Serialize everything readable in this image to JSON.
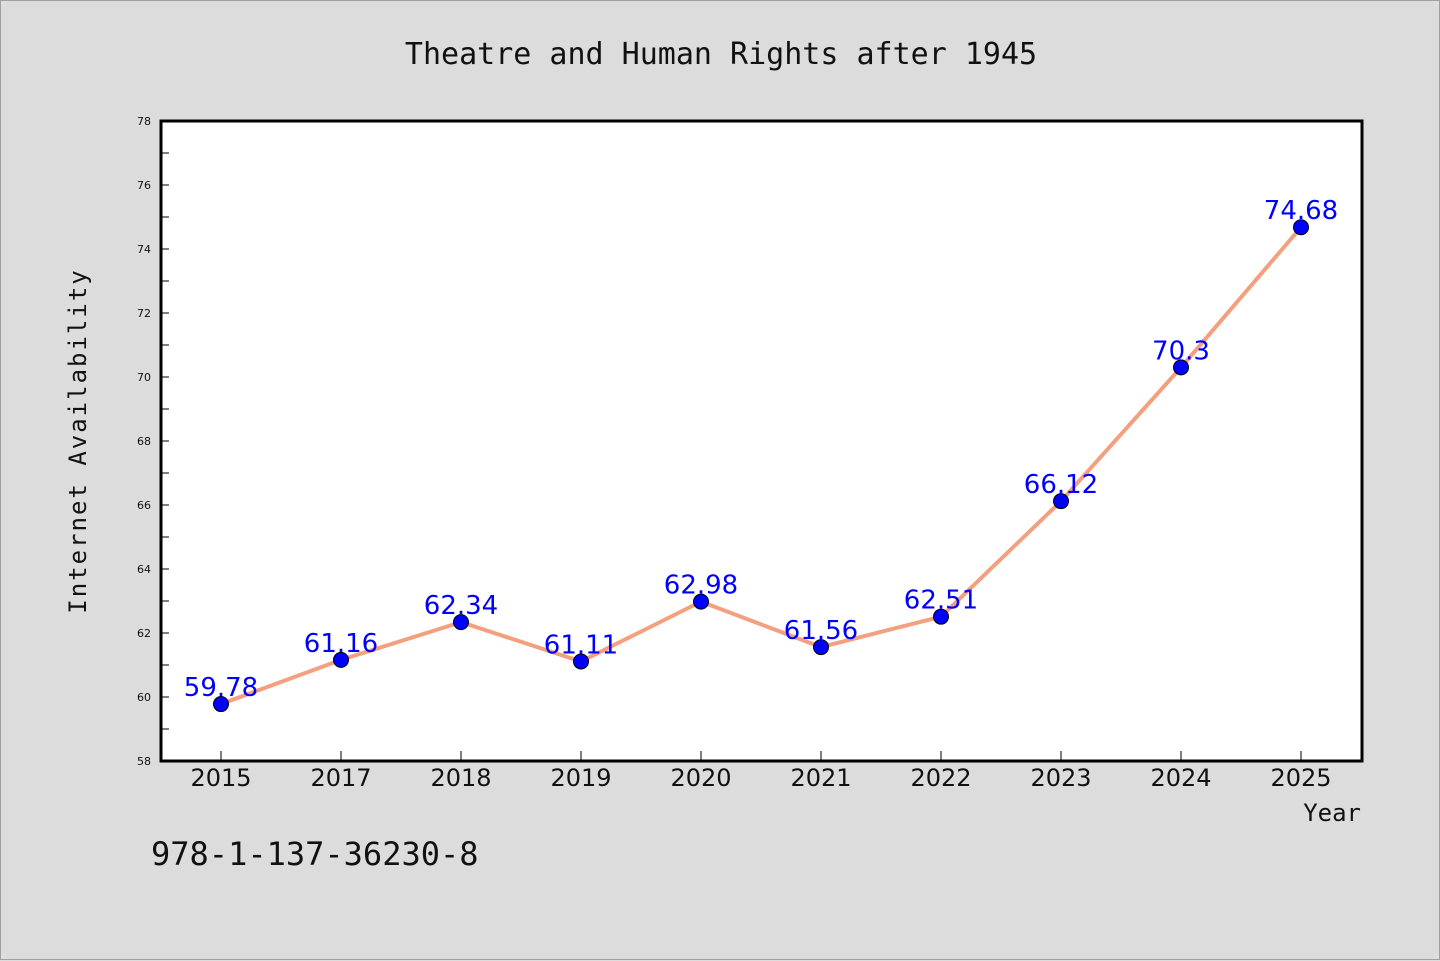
{
  "chart_data": {
    "type": "line",
    "title": "Theatre and Human Rights after 1945",
    "xlabel": "Year",
    "ylabel": "Internet Availability",
    "categories": [
      "2015",
      "2017",
      "2018",
      "2019",
      "2020",
      "2021",
      "2022",
      "2023",
      "2024",
      "2025"
    ],
    "series": [
      {
        "values": [
          59.78,
          61.16,
          62.34,
          61.11,
          62.98,
          61.56,
          62.51,
          66.12,
          70.3,
          74.68
        ],
        "data_labels": [
          "59.78",
          "61.16",
          "62.34",
          "61.11",
          "62.98",
          "61.56",
          "62.51",
          "66.12",
          "70.3",
          "74.68"
        ]
      }
    ],
    "ylim": [
      58,
      78
    ],
    "yticks": [
      58,
      60,
      62,
      64,
      66,
      68,
      70,
      72,
      74,
      76,
      78
    ],
    "grid": false,
    "legend": "none",
    "colors": {
      "line": "#f4a07f",
      "marker": "#0000ff",
      "label": "#0000ff",
      "background": "#dcdcdc",
      "plot_area": "#ffffff"
    }
  },
  "footer": {
    "isbn": "978-1-137-36230-8"
  }
}
